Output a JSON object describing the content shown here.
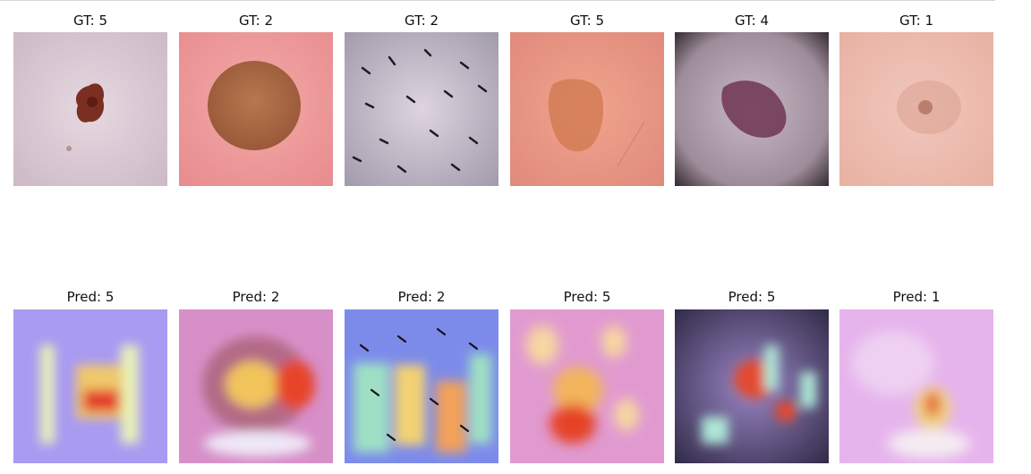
{
  "gt_row": [
    {
      "title": "GT: 5",
      "image": "skin-lesion-small-dark-spot"
    },
    {
      "title": "GT: 2",
      "image": "skin-lesion-round-brown"
    },
    {
      "title": "GT: 2",
      "image": "skin-lesion-hairy-speckled"
    },
    {
      "title": "GT: 5",
      "image": "skin-lesion-orange-patch"
    },
    {
      "title": "GT: 4",
      "image": "skin-lesion-purple-patch"
    },
    {
      "title": "GT: 1",
      "image": "skin-lesion-faint-pink"
    }
  ],
  "pred_row": [
    {
      "title": "Pred: 5",
      "image": "gradcam-heatmap-overlay"
    },
    {
      "title": "Pred: 2",
      "image": "gradcam-heatmap-overlay"
    },
    {
      "title": "Pred: 2",
      "image": "gradcam-heatmap-overlay"
    },
    {
      "title": "Pred: 5",
      "image": "gradcam-heatmap-overlay"
    },
    {
      "title": "Pred: 5",
      "image": "gradcam-heatmap-overlay"
    },
    {
      "title": "Pred: 1",
      "image": "gradcam-heatmap-overlay"
    }
  ],
  "colors": {
    "heatmap_cold": "#8a7cf0",
    "heatmap_hot": "#e8392c",
    "heatmap_warm": "#f4d46a"
  }
}
